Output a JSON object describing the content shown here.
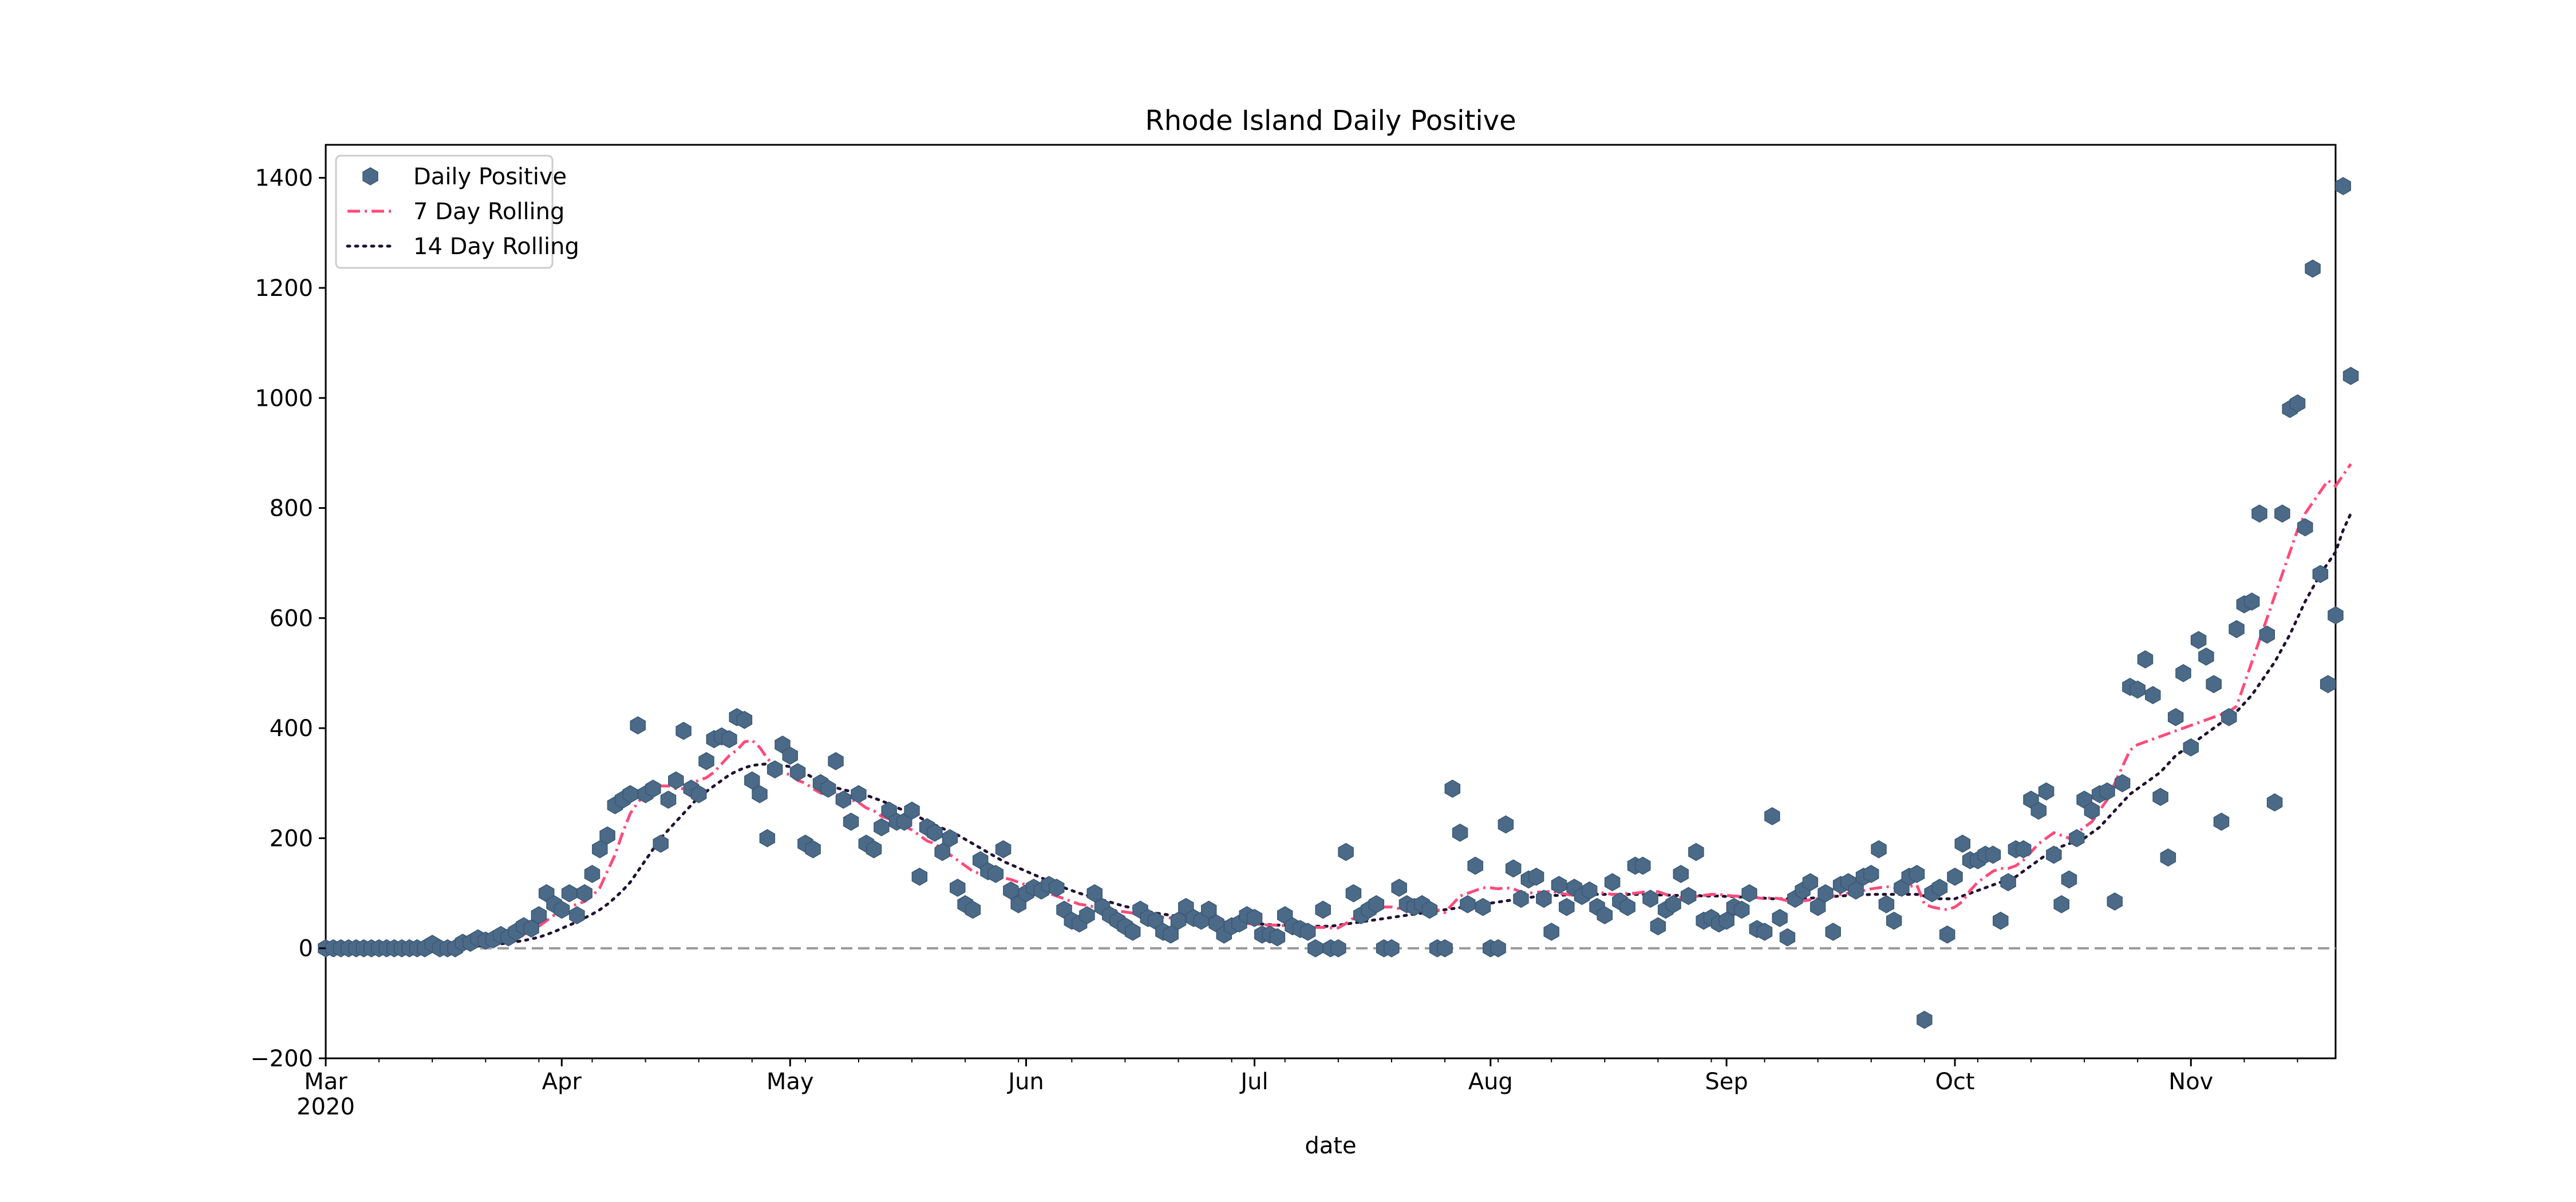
{
  "chart_data": {
    "type": "scatter",
    "title": "Rhode Island Daily Positive",
    "xlabel": "date",
    "ylabel": "",
    "ylim": [
      -200,
      1460
    ],
    "xlim": [
      "2020-03-01",
      "2020-11-20"
    ],
    "yticks": [
      -200,
      0,
      200,
      400,
      600,
      800,
      1000,
      1200,
      1400
    ],
    "ytick_labels": [
      "−200",
      "0",
      "200",
      "400",
      "600",
      "800",
      "1000",
      "1200",
      "1400"
    ],
    "xticks": [
      {
        "date": "2020-03-01",
        "label": "Mar",
        "sublabel": "2020"
      },
      {
        "date": "2020-04-01",
        "label": "Apr",
        "sublabel": ""
      },
      {
        "date": "2020-05-01",
        "label": "May",
        "sublabel": ""
      },
      {
        "date": "2020-06-01",
        "label": "Jun",
        "sublabel": ""
      },
      {
        "date": "2020-07-01",
        "label": "Jul",
        "sublabel": ""
      },
      {
        "date": "2020-08-01",
        "label": "Aug",
        "sublabel": ""
      },
      {
        "date": "2020-09-01",
        "label": "Sep",
        "sublabel": ""
      },
      {
        "date": "2020-10-01",
        "label": "Oct",
        "sublabel": ""
      },
      {
        "date": "2020-11-01",
        "label": "Nov",
        "sublabel": ""
      }
    ],
    "grid": false,
    "legend_position": "top-left",
    "reference_line": {
      "y": 0,
      "style": "dashed",
      "color": "#999999"
    },
    "colors": {
      "daily": "#4b6a88",
      "rolling7": "#ff4a7a",
      "rolling14": "#221133"
    },
    "series": [
      {
        "name": "Daily Positive",
        "style": "hexagon-markers",
        "dates_start": "2020-03-01",
        "values": [
          0,
          0,
          0,
          0,
          0,
          0,
          0,
          0,
          0,
          0,
          0,
          0,
          0,
          0,
          8,
          0,
          0,
          0,
          10,
          10,
          18,
          14,
          16,
          24,
          20,
          30,
          40,
          36,
          60,
          100,
          80,
          70,
          100,
          60,
          100,
          135,
          180,
          205,
          260,
          270,
          280,
          405,
          280,
          290,
          190,
          270,
          305,
          395,
          290,
          280,
          340,
          380,
          385,
          380,
          420,
          415,
          305,
          280,
          200,
          325,
          370,
          350,
          320,
          190,
          180,
          300,
          290,
          340,
          270,
          230,
          280,
          190,
          180,
          220,
          250,
          230,
          230,
          250,
          130,
          220,
          210,
          175,
          200,
          110,
          80,
          70,
          160,
          140,
          135,
          180,
          105,
          80,
          100,
          110,
          105,
          115,
          110,
          70,
          50,
          45,
          60,
          100,
          75,
          60,
          50,
          40,
          30,
          70,
          55,
          50,
          30,
          25,
          50,
          75,
          55,
          50,
          70,
          45,
          25,
          40,
          45,
          60,
          55,
          25,
          25,
          20,
          60,
          40,
          35,
          30,
          0,
          70,
          0,
          0,
          175,
          100,
          60,
          70,
          80,
          0,
          0,
          110,
          80,
          75,
          80,
          70,
          0,
          0,
          290,
          210,
          80,
          150,
          75,
          0,
          0,
          225,
          145,
          90,
          125,
          130,
          90,
          30,
          115,
          75,
          110,
          95,
          105,
          75,
          60,
          120,
          85,
          75,
          150,
          150,
          90,
          40,
          70,
          80,
          135,
          95,
          175,
          50,
          55,
          45,
          50,
          75,
          70,
          100,
          35,
          30,
          240,
          55,
          20,
          90,
          105,
          120,
          75,
          100,
          30,
          115,
          120,
          105,
          130,
          135,
          180,
          80,
          50,
          110,
          130,
          135,
          -130,
          100,
          110,
          25,
          130,
          190,
          160,
          160,
          170,
          170,
          50,
          120,
          180,
          180,
          270,
          250,
          285,
          170,
          80,
          125,
          200,
          270,
          250,
          280,
          285,
          85,
          300,
          475,
          470,
          525,
          460,
          275,
          165,
          420,
          500,
          365,
          560,
          530,
          480,
          230,
          420,
          580,
          625,
          630,
          790,
          570,
          265,
          790,
          980,
          990,
          765,
          1235,
          680,
          480,
          605,
          1385,
          1040
        ]
      },
      {
        "name": "7 Day Rolling",
        "style": "dash-dot",
        "dates_start": "2020-03-01",
        "values": [
          0,
          0,
          0,
          0,
          0,
          0,
          0,
          0,
          0,
          0,
          1,
          1,
          1,
          1,
          2,
          2,
          3,
          4,
          5,
          6,
          8,
          10,
          12,
          14,
          17,
          20,
          25,
          32,
          40,
          50,
          60,
          68,
          75,
          80,
          85,
          95,
          110,
          140,
          170,
          210,
          245,
          265,
          280,
          290,
          295,
          295,
          290,
          290,
          300,
          305,
          310,
          320,
          335,
          350,
          360,
          375,
          378,
          365,
          345,
          330,
          320,
          315,
          305,
          300,
          290,
          282,
          280,
          280,
          275,
          270,
          265,
          255,
          250,
          240,
          235,
          230,
          222,
          215,
          205,
          195,
          190,
          180,
          170,
          160,
          150,
          140,
          135,
          130,
          130,
          128,
          125,
          120,
          115,
          110,
          105,
          100,
          95,
          90,
          85,
          80,
          78,
          75,
          72,
          70,
          68,
          66,
          64,
          62,
          60,
          58,
          56,
          55,
          54,
          53,
          52,
          51,
          50,
          49,
          48,
          47,
          46,
          45,
          44,
          43,
          42,
          42,
          41,
          40,
          40,
          39,
          38,
          38,
          37,
          37,
          45,
          55,
          60,
          65,
          70,
          75,
          75,
          72,
          70,
          72,
          75,
          75,
          70,
          65,
          80,
          95,
          100,
          105,
          110,
          110,
          108,
          110,
          108,
          102,
          100,
          102,
          102,
          104,
          100,
          98,
          96,
          98,
          100,
          102,
          100,
          98,
          98,
          100,
          100,
          102,
          103,
          103,
          98,
          95,
          92,
          92,
          94,
          96,
          98,
          98,
          96,
          95,
          94,
          93,
          92,
          90,
          92,
          90,
          86,
          85,
          86,
          88,
          90,
          92,
          95,
          98,
          100,
          102,
          105,
          108,
          110,
          112,
          110,
          110,
          112,
          115,
          80,
          75,
          72,
          70,
          75,
          85,
          105,
          120,
          130,
          140,
          145,
          145,
          150,
          160,
          175,
          190,
          200,
          210,
          205,
          200,
          210,
          220,
          230,
          250,
          270,
          300,
          330,
          360,
          370,
          375,
          380,
          385,
          390,
          395,
          400,
          405,
          410,
          415,
          420,
          425,
          430,
          440,
          480,
          520,
          560,
          600,
          640,
          680,
          720,
          760,
          790,
          810,
          830,
          850,
          840,
          860,
          880
        ]
      },
      {
        "name": "14 Day Rolling",
        "style": "dotted",
        "dates_start": "2020-03-01",
        "values": [
          0,
          0,
          0,
          0,
          0,
          0,
          0,
          0,
          0,
          0,
          0,
          0,
          1,
          1,
          1,
          1,
          2,
          2,
          3,
          3,
          4,
          5,
          6,
          8,
          10,
          12,
          14,
          17,
          20,
          25,
          30,
          36,
          42,
          48,
          55,
          62,
          70,
          80,
          92,
          105,
          120,
          140,
          160,
          180,
          200,
          215,
          230,
          245,
          260,
          275,
          285,
          295,
          305,
          315,
          322,
          328,
          332,
          334,
          335,
          334,
          332,
          330,
          325,
          318,
          310,
          303,
          296,
          292,
          288,
          285,
          282,
          278,
          273,
          268,
          262,
          256,
          250,
          244,
          238,
          230,
          224,
          218,
          212,
          206,
          198,
          190,
          182,
          174,
          166,
          158,
          152,
          146,
          140,
          134,
          128,
          122,
          116,
          110,
          105,
          100,
          96,
          92,
          88,
          84,
          80,
          76,
          73,
          70,
          67,
          64,
          62,
          60,
          58,
          56,
          54,
          52,
          51,
          50,
          49,
          48,
          47,
          46,
          45,
          44,
          43,
          42,
          42,
          41,
          40,
          40,
          40,
          40,
          40,
          42,
          44,
          46,
          48,
          50,
          52,
          54,
          56,
          58,
          60,
          62,
          64,
          66,
          68,
          70,
          72,
          74,
          76,
          78,
          80,
          82,
          84,
          86,
          88,
          90,
          92,
          94,
          95,
          96,
          96,
          97,
          97,
          98,
          98,
          98,
          98,
          98,
          98,
          98,
          98,
          98,
          98,
          97,
          97,
          96,
          96,
          96,
          96,
          95,
          95,
          95,
          94,
          94,
          93,
          93,
          92,
          91,
          90,
          90,
          90,
          90,
          90,
          91,
          92,
          93,
          94,
          95,
          96,
          97,
          97,
          98,
          98,
          98,
          98,
          98,
          98,
          98,
          95,
          92,
          90,
          90,
          90,
          95,
          100,
          105,
          110,
          115,
          120,
          125,
          130,
          140,
          150,
          160,
          170,
          180,
          185,
          190,
          195,
          200,
          210,
          220,
          235,
          250,
          265,
          280,
          290,
          300,
          310,
          320,
          335,
          350,
          360,
          370,
          380,
          390,
          400,
          410,
          420,
          430,
          445,
          460,
          480,
          500,
          520,
          545,
          570,
          600,
          630,
          655,
          680,
          700,
          720,
          760,
          790
        ]
      }
    ]
  }
}
